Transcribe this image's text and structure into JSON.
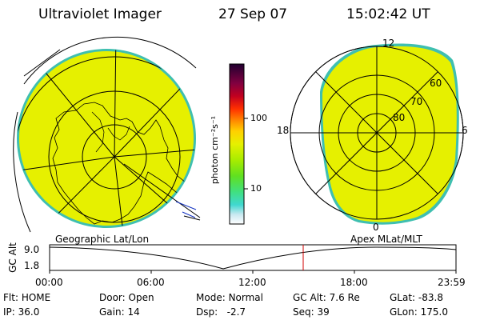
{
  "header": {
    "instrument": "Ultraviolet Imager",
    "date": "27 Sep 07",
    "time": "15:02:42 UT"
  },
  "colorbar": {
    "unit_label": "photon cm⁻²s⁻¹",
    "ticks": [
      "100",
      "10"
    ]
  },
  "geo_panel": {
    "label": "Geographic Lat/Lon"
  },
  "apex_panel": {
    "label": "Apex MLat/MLT",
    "mlt_labels": {
      "top": "12",
      "left": "18",
      "right": "6",
      "bottom": "0"
    },
    "mlat_labels": [
      "60",
      "70",
      "80"
    ]
  },
  "altitude_plot": {
    "ylabel": "GC Alt",
    "yticks": [
      "9.0",
      "1.8"
    ],
    "xticks": [
      "00:00",
      "06:00",
      "12:00",
      "18:00",
      "23:59"
    ],
    "current_time_marker": "15:02"
  },
  "status": {
    "flt": {
      "label": "Flt:",
      "value": "HOME"
    },
    "ip": {
      "label": "IP:",
      "value": "36.0"
    },
    "door": {
      "label": "Door:",
      "value": "Open"
    },
    "gain": {
      "label": "Gain:",
      "value": "14"
    },
    "mode": {
      "label": "Mode:",
      "value": "Normal"
    },
    "dsp": {
      "label": "Dsp:",
      "value": "-2.7"
    },
    "gc_alt": {
      "label": "GC Alt:",
      "value": "7.6 Re"
    },
    "seq": {
      "label": "Seq:",
      "value": "39"
    },
    "glat": {
      "label": "GLat:",
      "value": "-83.8"
    },
    "glon": {
      "label": "GLon:",
      "value": "175.0"
    }
  },
  "colors": {
    "emission": "#e6f000",
    "rim": "#3fbfb0",
    "marker": "#d00000"
  }
}
